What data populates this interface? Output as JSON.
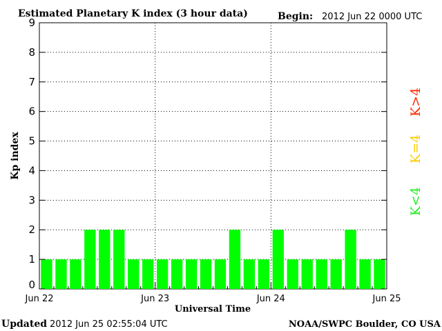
{
  "header": {
    "title": "Estimated Planetary K index (3 hour data)",
    "begin_label": "Begin:",
    "begin_value": "2012 Jun 22 0000 UTC"
  },
  "footer": {
    "updated_label": "Updated",
    "updated_value": "2012 Jun 25 02:55:04 UTC",
    "credit": "NOAA/SWPC Boulder, CO USA"
  },
  "legend": [
    {
      "label": "K>4",
      "color": "#ff2a00"
    },
    {
      "label": "K=4",
      "color": "#ffcc00"
    },
    {
      "label": "K<4",
      "color": "#22ee22"
    }
  ],
  "chart_data": {
    "type": "bar",
    "title": "Estimated Planetary K index (3 hour data)",
    "xlabel": "Universal Time",
    "ylabel": "Kp index",
    "ylim": [
      0,
      9
    ],
    "yticks": [
      0,
      1,
      2,
      3,
      4,
      5,
      6,
      7,
      8,
      9
    ],
    "xtick_labels": [
      "Jun 22",
      "Jun 23",
      "Jun 24",
      "Jun 25"
    ],
    "grid": true,
    "bar_color": "#00ff00",
    "values": [
      1,
      1,
      1,
      2,
      2,
      2,
      1,
      1,
      1,
      1,
      1,
      1,
      1,
      2,
      1,
      1,
      2,
      1,
      1,
      1,
      1,
      2,
      1,
      1
    ]
  }
}
